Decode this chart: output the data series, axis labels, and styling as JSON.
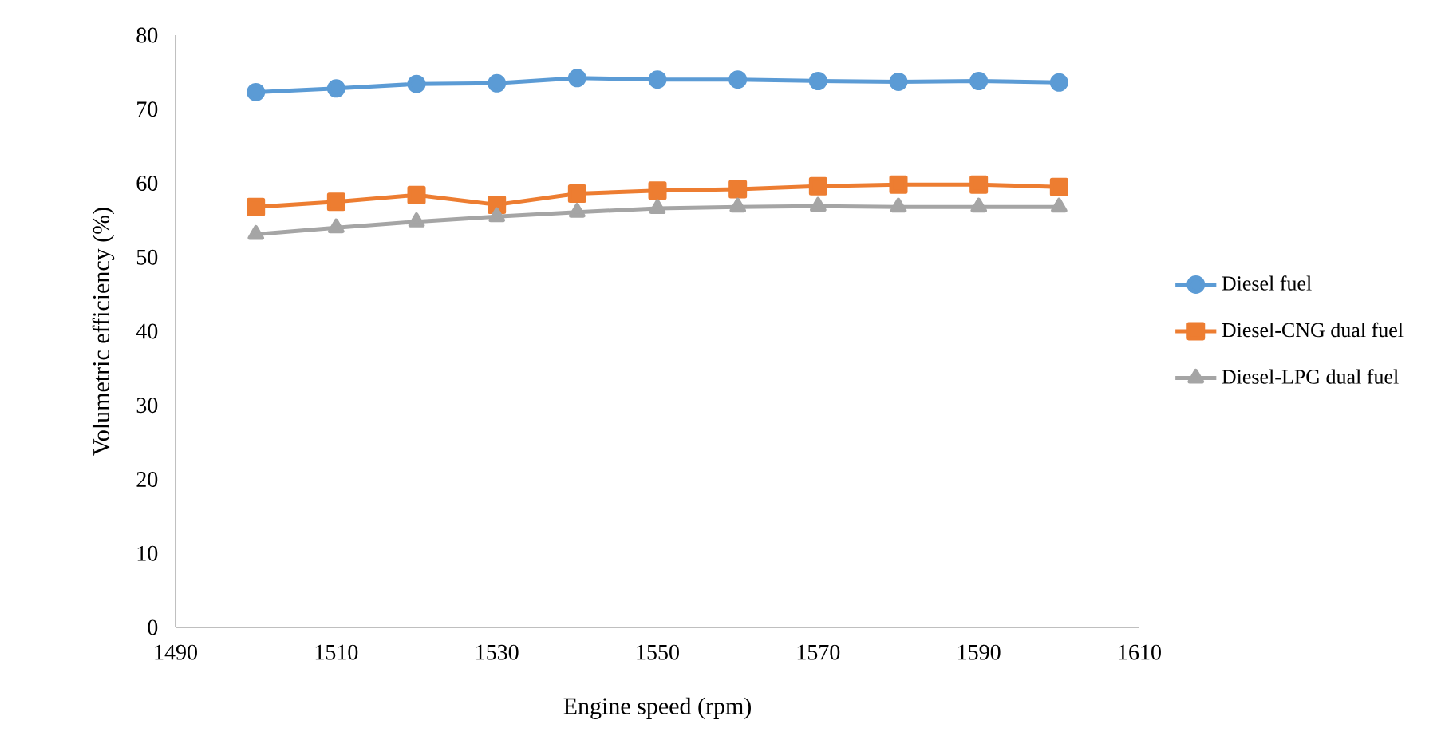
{
  "chart_data": {
    "type": "line",
    "xlabel": "Engine speed (rpm)",
    "ylabel": "Volumetric efficiency (%)",
    "x": [
      1500,
      1510,
      1520,
      1530,
      1540,
      1550,
      1560,
      1570,
      1580,
      1590,
      1600
    ],
    "series": [
      {
        "name": "Diesel fuel",
        "color": "#5b9bd5",
        "marker": "circle",
        "values": [
          72.3,
          72.8,
          73.4,
          73.5,
          74.2,
          74.0,
          74.0,
          73.8,
          73.7,
          73.8,
          73.6
        ]
      },
      {
        "name": "Diesel-CNG dual fuel",
        "color": "#ed7d31",
        "marker": "square",
        "values": [
          56.8,
          57.5,
          58.4,
          57.1,
          58.6,
          59.0,
          59.2,
          59.6,
          59.8,
          59.8,
          59.5
        ]
      },
      {
        "name": "Diesel-LPG dual fuel",
        "color": "#a5a5a5",
        "marker": "triangle",
        "values": [
          53.1,
          54.0,
          54.8,
          55.5,
          56.1,
          56.6,
          56.8,
          56.9,
          56.8,
          56.8,
          56.8
        ]
      }
    ],
    "xlim": [
      1490,
      1610
    ],
    "xticks": [
      1490,
      1510,
      1530,
      1550,
      1570,
      1590,
      1610
    ],
    "ylim": [
      0,
      80
    ],
    "yticks": [
      0,
      10,
      20,
      30,
      40,
      50,
      60,
      70,
      80
    ],
    "grid": false,
    "legend": "right",
    "line_style": "solid"
  }
}
